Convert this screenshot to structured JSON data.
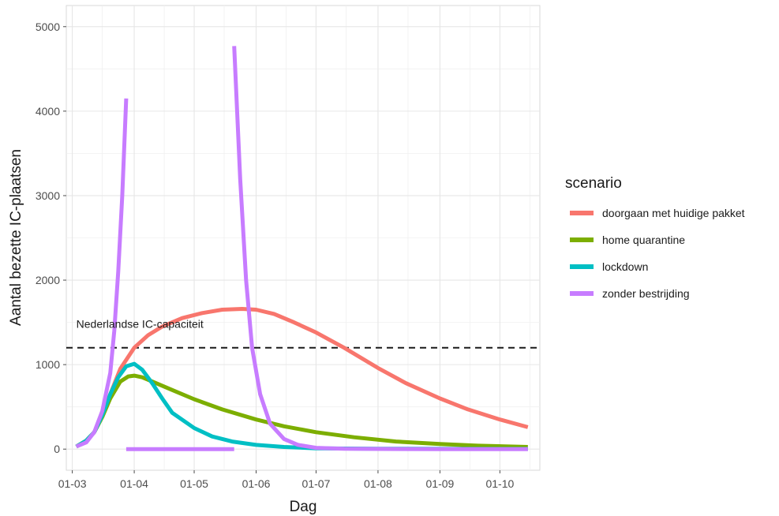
{
  "chart_data": {
    "type": "line",
    "xlabel": "Dag",
    "ylabel": "Aantal bezette IC-plaatsen",
    "x_ticks": [
      "01-03",
      "01-04",
      "01-05",
      "01-06",
      "01-07",
      "01-08",
      "01-09",
      "01-10"
    ],
    "x_tick_dates": [
      "2020-03-01",
      "2020-04-01",
      "2020-05-01",
      "2020-06-01",
      "2020-07-01",
      "2020-08-01",
      "2020-09-01",
      "2020-10-01"
    ],
    "xlim": [
      "2020-02-27",
      "2020-10-21"
    ],
    "y_ticks": [
      0,
      1000,
      2000,
      3000,
      4000,
      5000
    ],
    "ylim": [
      -250,
      5250
    ],
    "grid": true,
    "legend": {
      "title": "scenario",
      "placement": "right"
    },
    "reference_line": {
      "value": 1200,
      "style": "dashed",
      "color": "#1a1a1a",
      "label": "Nederlandse IC-capaciteit"
    },
    "series": [
      {
        "name": "doorgaan met huidige pakket",
        "color": "#F8766D",
        "x": [
          "2020-03-03",
          "2020-03-08",
          "2020-03-12",
          "2020-03-16",
          "2020-03-20",
          "2020-03-25",
          "2020-04-01",
          "2020-04-08",
          "2020-04-15",
          "2020-04-25",
          "2020-05-05",
          "2020-05-15",
          "2020-05-25",
          "2020-06-01",
          "2020-06-10",
          "2020-06-20",
          "2020-07-01",
          "2020-07-15",
          "2020-08-01",
          "2020-08-15",
          "2020-09-01",
          "2020-09-15",
          "2020-10-01",
          "2020-10-15"
        ],
        "values": [
          30,
          100,
          200,
          400,
          650,
          950,
          1200,
          1350,
          1450,
          1550,
          1610,
          1650,
          1660,
          1650,
          1600,
          1500,
          1380,
          1200,
          960,
          780,
          600,
          470,
          350,
          260
        ]
      },
      {
        "name": "home quarantine",
        "color": "#7CAE00",
        "x": [
          "2020-03-03",
          "2020-03-08",
          "2020-03-12",
          "2020-03-16",
          "2020-03-20",
          "2020-03-25",
          "2020-03-29",
          "2020-04-01",
          "2020-04-05",
          "2020-04-10",
          "2020-04-20",
          "2020-05-01",
          "2020-05-15",
          "2020-06-01",
          "2020-06-15",
          "2020-07-01",
          "2020-07-20",
          "2020-08-10",
          "2020-09-01",
          "2020-09-20",
          "2020-10-15"
        ],
        "values": [
          30,
          100,
          200,
          380,
          600,
          800,
          860,
          870,
          850,
          800,
          700,
          590,
          470,
          350,
          270,
          200,
          140,
          90,
          60,
          40,
          25
        ]
      },
      {
        "name": "lockdown",
        "color": "#00BFC4",
        "x": [
          "2020-03-03",
          "2020-03-08",
          "2020-03-12",
          "2020-03-16",
          "2020-03-20",
          "2020-03-24",
          "2020-03-28",
          "2020-04-01",
          "2020-04-05",
          "2020-04-10",
          "2020-04-15",
          "2020-04-20",
          "2020-05-01",
          "2020-05-10",
          "2020-05-20",
          "2020-06-01",
          "2020-06-15",
          "2020-07-01",
          "2020-08-01",
          "2020-09-01",
          "2020-10-15"
        ],
        "values": [
          30,
          100,
          200,
          400,
          650,
          850,
          980,
          1010,
          940,
          780,
          600,
          430,
          250,
          150,
          90,
          50,
          25,
          10,
          5,
          3,
          2
        ]
      },
      {
        "name": "zonder bestrijding",
        "color": "#C77CFF",
        "x": [
          "2020-03-03",
          "2020-03-08",
          "2020-03-12",
          "2020-03-16",
          "2020-03-20",
          "2020-03-22",
          "2020-03-24",
          "2020-03-26",
          "2020-03-28",
          "2020-03-28",
          "2020-03-30",
          "2020-04-01",
          "2020-04-03",
          "2020-04-05",
          "2020-04-08",
          "2020-04-12",
          "2020-04-16",
          "2020-04-20",
          "2020-04-24",
          "2020-04-28",
          "2020-05-02",
          "2020-05-06",
          "2020-05-10",
          "2020-05-14",
          "2020-05-18",
          "2020-05-21",
          "2020-05-21",
          "2020-05-24",
          "2020-05-27",
          "2020-05-30",
          "2020-06-03",
          "2020-06-08",
          "2020-06-15",
          "2020-06-22",
          "2020-07-01",
          "2020-07-15",
          "2020-08-01",
          "2020-09-01",
          "2020-10-15"
        ],
        "values": [
          30,
          80,
          200,
          450,
          900,
          1400,
          2100,
          3000,
          4150,
          0,
          0,
          0,
          0,
          0,
          0,
          0,
          0,
          0,
          0,
          0,
          0,
          0,
          0,
          0,
          0,
          0,
          4770,
          3200,
          2000,
          1200,
          650,
          300,
          120,
          50,
          15,
          5,
          2,
          0,
          0
        ]
      }
    ]
  }
}
